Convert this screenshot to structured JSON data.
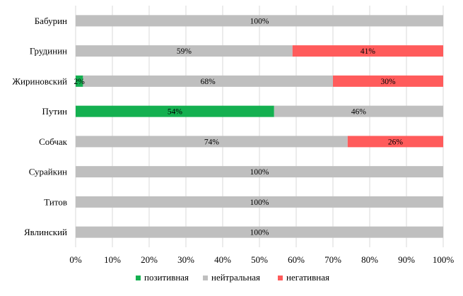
{
  "chart_data": {
    "type": "bar",
    "orientation": "horizontal",
    "stacked": true,
    "title": "",
    "xlabel": "",
    "ylabel": "",
    "categories": [
      "Бабурин",
      "Грудинин",
      "Жириновский",
      "Путин",
      "Собчак",
      "Сурайкин",
      "Титов",
      "Явлинский"
    ],
    "series": [
      {
        "name": "позитивная",
        "color": "#14b050",
        "values": [
          0,
          0,
          2,
          54,
          0,
          0,
          0,
          0
        ]
      },
      {
        "name": "нейтральная",
        "color": "#bfbfbf",
        "values": [
          100,
          59,
          68,
          46,
          74,
          100,
          100,
          100
        ]
      },
      {
        "name": "негативная",
        "color": "#ff5b5b",
        "values": [
          0,
          41,
          30,
          0,
          26,
          0,
          0,
          0
        ]
      }
    ],
    "xlim": [
      0,
      100
    ],
    "x_ticks": [
      "0%",
      "10%",
      "20%",
      "30%",
      "40%",
      "50%",
      "60%",
      "70%",
      "80%",
      "90%",
      "100%"
    ],
    "grid": true,
    "legend_position": "bottom"
  }
}
